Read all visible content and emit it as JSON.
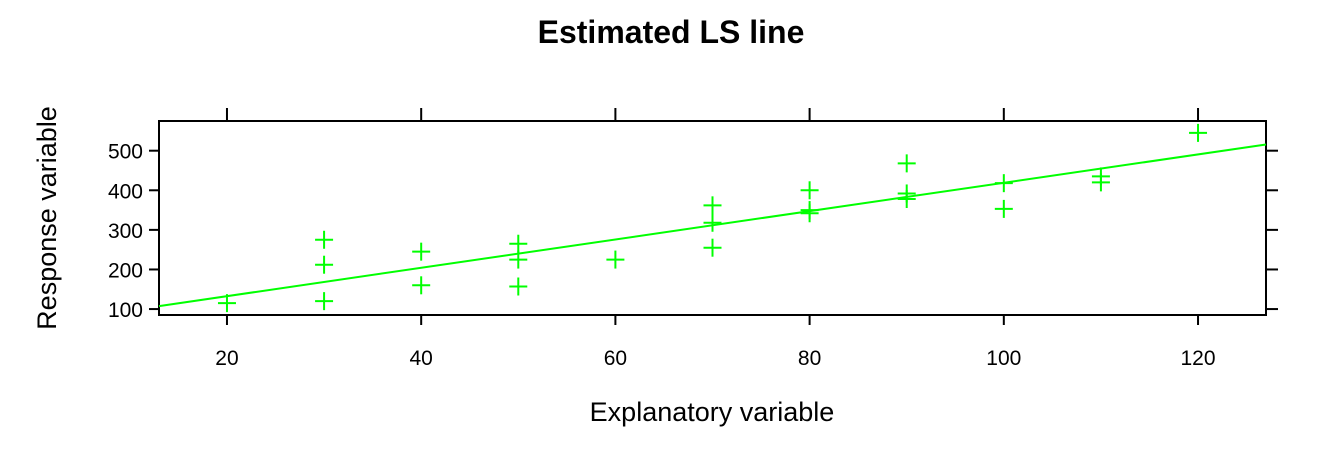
{
  "chart_data": {
    "type": "scatter",
    "title": "Estimated LS line",
    "xlabel": "Explanatory variable",
    "ylabel": "Response variable",
    "xlim": [
      13,
      127
    ],
    "ylim": [
      85,
      575
    ],
    "xticks": [
      20,
      40,
      60,
      80,
      100,
      120
    ],
    "yticks": [
      100,
      200,
      300,
      400,
      500
    ],
    "x_ticks_top": true,
    "y_ticks_right": true,
    "grid": false,
    "color": "#00ff00",
    "points": [
      {
        "x": 20,
        "y": 115
      },
      {
        "x": 30,
        "y": 275
      },
      {
        "x": 30,
        "y": 212
      },
      {
        "x": 30,
        "y": 120
      },
      {
        "x": 40,
        "y": 245
      },
      {
        "x": 40,
        "y": 160
      },
      {
        "x": 50,
        "y": 265
      },
      {
        "x": 50,
        "y": 225
      },
      {
        "x": 50,
        "y": 157
      },
      {
        "x": 60,
        "y": 225
      },
      {
        "x": 70,
        "y": 362
      },
      {
        "x": 70,
        "y": 318
      },
      {
        "x": 70,
        "y": 255
      },
      {
        "x": 80,
        "y": 400
      },
      {
        "x": 80,
        "y": 350
      },
      {
        "x": 80,
        "y": 342
      },
      {
        "x": 90,
        "y": 468
      },
      {
        "x": 90,
        "y": 392
      },
      {
        "x": 90,
        "y": 378
      },
      {
        "x": 100,
        "y": 418
      },
      {
        "x": 100,
        "y": 353
      },
      {
        "x": 110,
        "y": 435
      },
      {
        "x": 110,
        "y": 420
      },
      {
        "x": 120,
        "y": 545
      }
    ],
    "fit_line": {
      "intercept": 61,
      "slope": 3.58
    }
  }
}
